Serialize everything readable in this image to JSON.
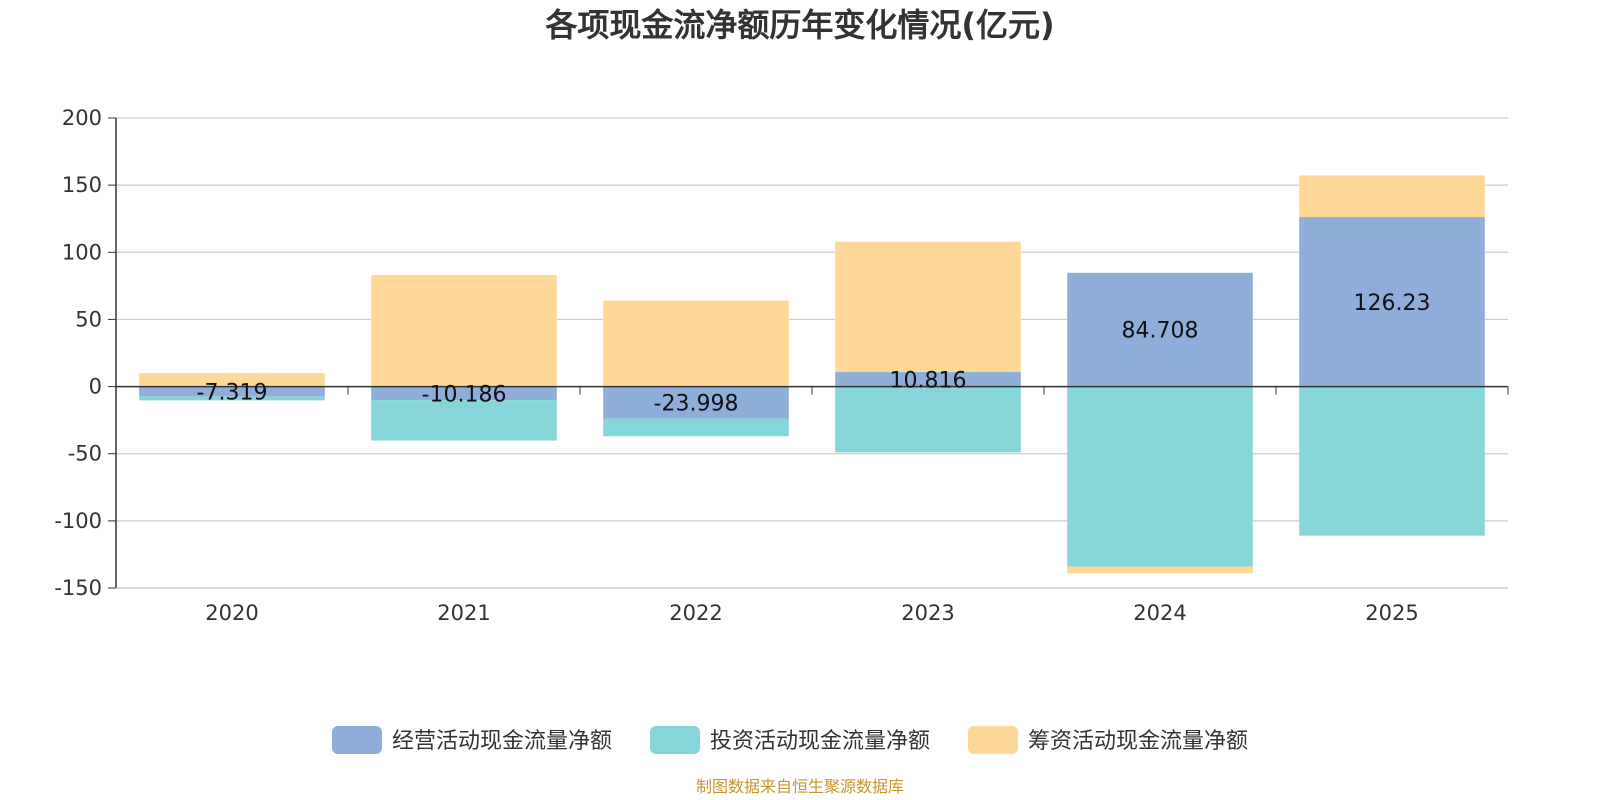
{
  "chart_data": {
    "type": "bar",
    "stacked": true,
    "title": "各项现金流净额历年变化情况(亿元)",
    "categories": [
      "2020",
      "2021",
      "2022",
      "2023",
      "2024",
      "2025"
    ],
    "series": [
      {
        "name": "经营活动现金流量净额",
        "color": "#8eadd9",
        "values": [
          -7.319,
          -10.186,
          -23.998,
          10.816,
          84.708,
          126.23
        ],
        "labels": [
          "-7.319",
          "-10.186",
          "-23.998",
          "10.816",
          "84.708",
          "126.23"
        ]
      },
      {
        "name": "投资活动现金流量净额",
        "color": "#86d5d8",
        "values": [
          -3,
          -30,
          -13,
          -49,
          -134,
          -111
        ]
      },
      {
        "name": "筹资活动现金流量净额",
        "color": "#fdd897",
        "values": [
          10,
          83,
          64,
          97,
          -5,
          31
        ]
      }
    ],
    "ylim": [
      -150,
      200
    ],
    "yticks": [
      200,
      150,
      100,
      50,
      0,
      -50,
      -100,
      -150
    ],
    "xlabel": "",
    "ylabel": "",
    "legend_position": "bottom"
  },
  "source": "制图数据来自恒生聚源数据库"
}
